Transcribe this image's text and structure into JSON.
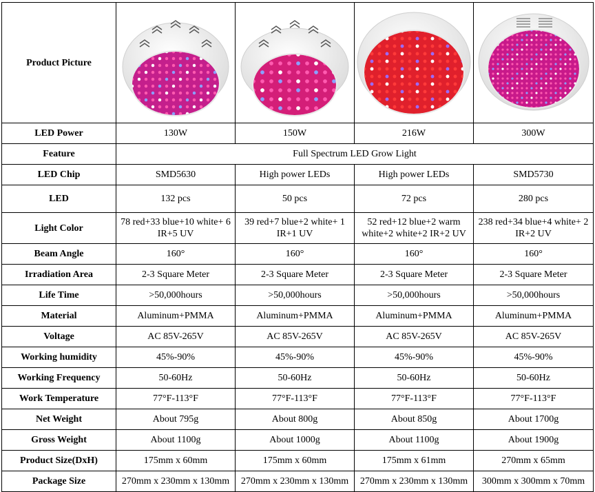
{
  "header": {
    "label": "Product Picture",
    "products": [
      {
        "image_name": "ufo-led-grow-light-130w-image"
      },
      {
        "image_name": "ufo-led-grow-light-150w-image"
      },
      {
        "image_name": "ufo-led-grow-light-216w-image"
      },
      {
        "image_name": "ufo-led-grow-light-300w-image"
      }
    ]
  },
  "feature": {
    "label": "Feature",
    "value": "Full Spectrum LED Grow Light"
  },
  "rows": [
    {
      "key": "led-power",
      "label": "LED Power",
      "values": [
        "130W",
        "150W",
        "216W",
        "300W"
      ]
    },
    {
      "key": "led-chip",
      "label": "LED Chip",
      "values": [
        "SMD5630",
        "High power LEDs",
        "High power LEDs",
        "SMD5730"
      ]
    },
    {
      "key": "led",
      "label": "LED",
      "values": [
        "132 pcs",
        "50 pcs",
        "72 pcs",
        "280 pcs"
      ]
    },
    {
      "key": "light-color",
      "label": "Light Color",
      "values": [
        "78 red+33 blue+10 white+ 6 IR+5 UV",
        "39 red+7 blue+2 white+ 1 IR+1 UV",
        "52 red+12 blue+2 warm white+2 white+2 IR+2 UV",
        "238 red+34 blue+4 white+ 2 IR+2 UV"
      ]
    },
    {
      "key": "beam-angle",
      "label": "Beam Angle",
      "values": [
        "160°",
        "160°",
        "160°",
        "160°"
      ]
    },
    {
      "key": "irradiation-area",
      "label": "Irradiation Area",
      "values": [
        "2-3 Square Meter",
        "2-3 Square Meter",
        "2-3 Square Meter",
        "2-3 Square Meter"
      ]
    },
    {
      "key": "life-time",
      "label": "Life Time",
      "values": [
        ">50,000hours",
        ">50,000hours",
        ">50,000hours",
        ">50,000hours"
      ]
    },
    {
      "key": "material",
      "label": "Material",
      "values": [
        "Aluminum+PMMA",
        "Aluminum+PMMA",
        "Aluminum+PMMA",
        "Aluminum+PMMA"
      ]
    },
    {
      "key": "voltage",
      "label": "Voltage",
      "values": [
        "AC 85V-265V",
        "AC 85V-265V",
        "AC 85V-265V",
        "AC 85V-265V"
      ]
    },
    {
      "key": "working-humidity",
      "label": "Working humidity",
      "values": [
        "45%-90%",
        "45%-90%",
        "45%-90%",
        "45%-90%"
      ]
    },
    {
      "key": "working-frequency",
      "label": "Working Frequency",
      "values": [
        "50-60Hz",
        "50-60Hz",
        "50-60Hz",
        "50-60Hz"
      ]
    },
    {
      "key": "work-temperature",
      "label": "Work Temperature",
      "values": [
        "77°F-113°F",
        "77°F-113°F",
        "77°F-113°F",
        "77°F-113°F"
      ]
    },
    {
      "key": "net-weight",
      "label": "Net Weight",
      "values": [
        "About 795g",
        "About 800g",
        "About 850g",
        "About 1700g"
      ]
    },
    {
      "key": "gross-weight",
      "label": "Gross Weight",
      "values": [
        "About 1100g",
        "About 1000g",
        "About 1100g",
        "About 1900g"
      ]
    },
    {
      "key": "product-size",
      "label": "Product Size(DxH)",
      "values": [
        "175mm x 60mm",
        "175mm x 60mm",
        "175mm x 61mm",
        "270mm x 65mm"
      ]
    },
    {
      "key": "package-size",
      "label": "Package Size",
      "values": [
        "270mm x 230mm x 130mm",
        "270mm x 230mm x 130mm",
        "270mm x 230mm x 130mm",
        "300mm x 300mm x 70mm"
      ]
    }
  ]
}
